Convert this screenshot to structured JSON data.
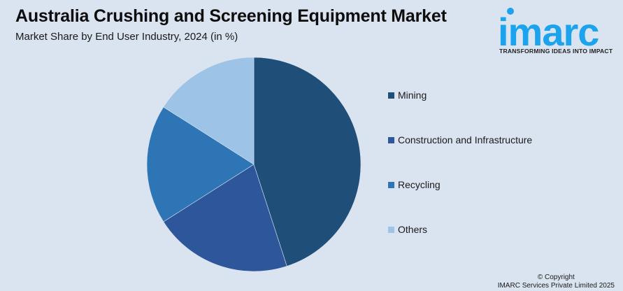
{
  "header": {
    "title": "Australia Crushing and Screening Equipment Market",
    "subtitle": "Market Share by End User Industry, 2024 (in %)"
  },
  "logo": {
    "wordmark": "imarc",
    "tagline": "TRANSFORMING IDEAS INTO IMPACT",
    "color": "#1BA3EE"
  },
  "footer": {
    "copyright_line1": "© Copyright",
    "copyright_line2": "IMARC Services Private Limited 2025"
  },
  "chart_data": {
    "type": "pie",
    "title": "Australia Crushing and Screening Equipment Market",
    "subtitle": "Market Share by End User Industry, 2024 (in %)",
    "categories": [
      "Mining",
      "Construction and Infrastructure",
      "Recycling",
      "Others"
    ],
    "values": [
      45,
      21,
      18,
      16
    ],
    "colors": [
      "#1F4E79",
      "#2E569B",
      "#2E75B6",
      "#9DC3E6"
    ],
    "start_angle_deg": 0,
    "direction": "clockwise",
    "data_labels": false,
    "legend_position": "right"
  }
}
